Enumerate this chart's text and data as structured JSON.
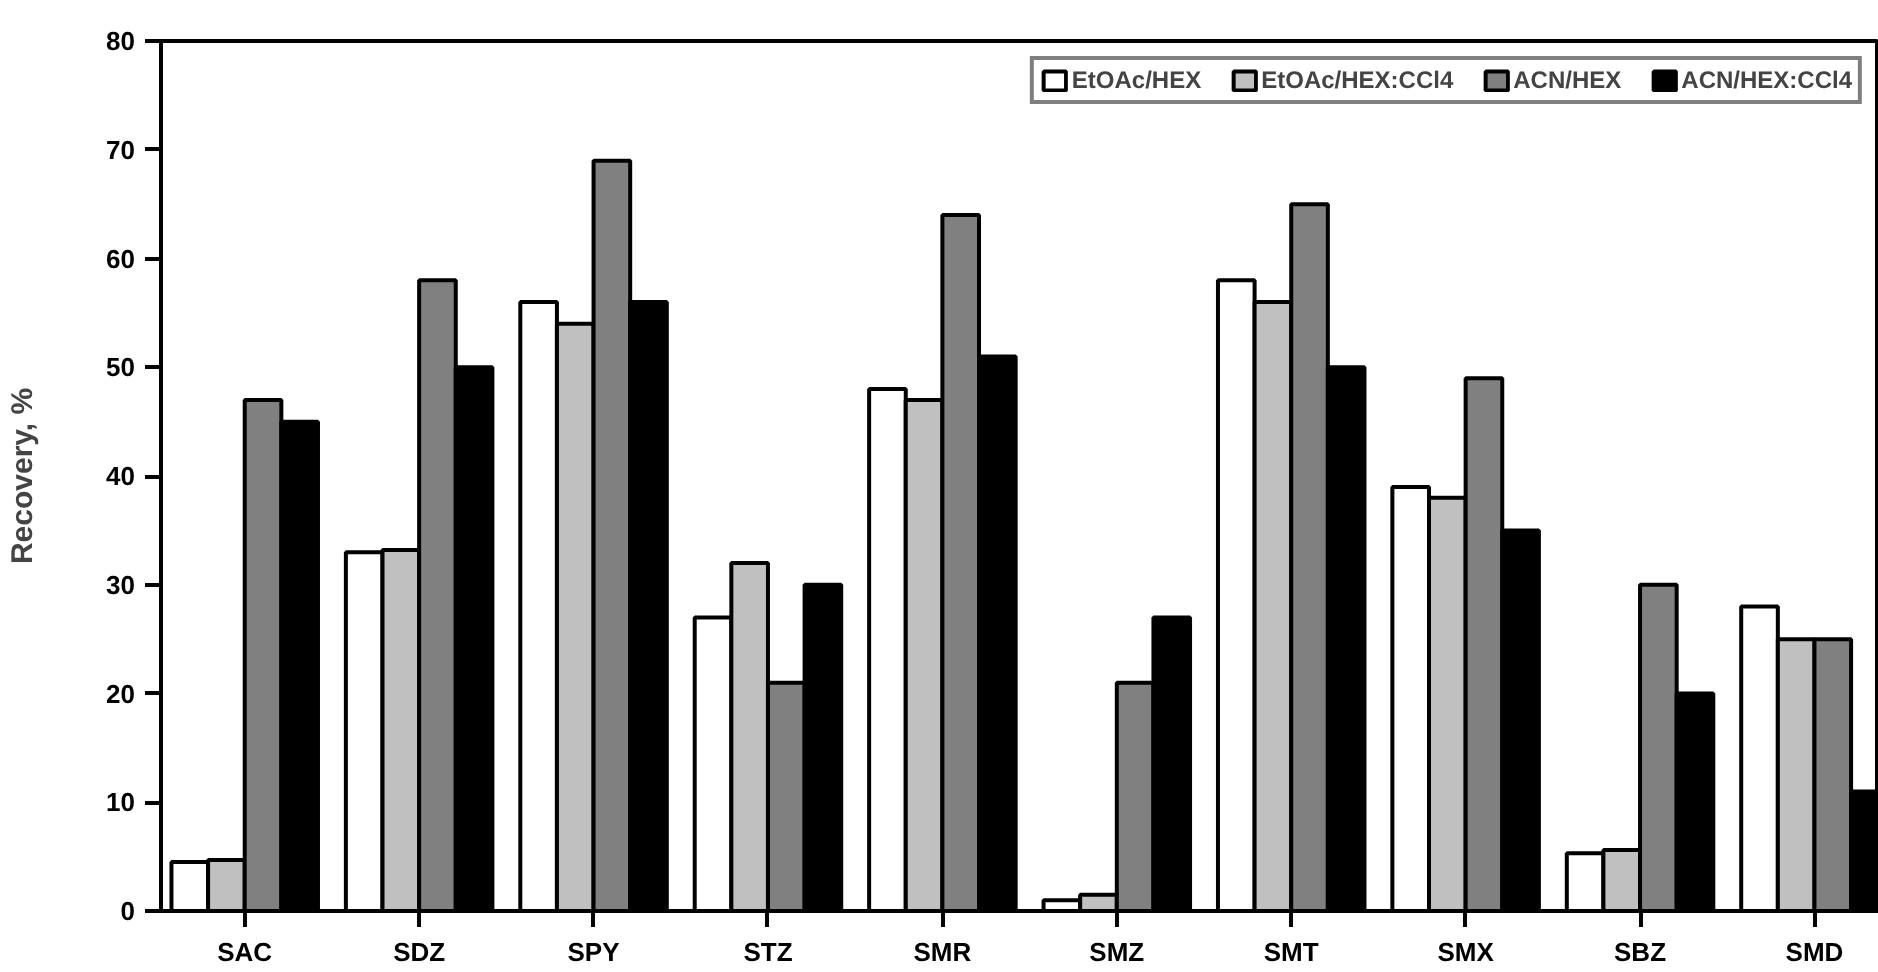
{
  "chart_data": {
    "type": "bar",
    "ylabel": "Recovery, %",
    "categories": [
      "SAC",
      "SDZ",
      "SPY",
      "STZ",
      "SMR",
      "SMZ",
      "SMT",
      "SMX",
      "SBZ",
      "SMD"
    ],
    "series": [
      {
        "name": "EtOAc/HEX",
        "color": "#ffffff",
        "values": [
          4.5,
          33,
          56,
          27,
          48,
          1,
          58,
          39,
          5.3,
          28
        ]
      },
      {
        "name": "EtOAc/HEX:CCl4",
        "color": "#c0c0c0",
        "values": [
          4.7,
          33.2,
          54,
          32,
          47,
          1.5,
          56,
          38,
          5.6,
          25
        ]
      },
      {
        "name": "ACN/HEX",
        "color": "#808080",
        "values": [
          47,
          58,
          69,
          21,
          64,
          21,
          65,
          49,
          30,
          25
        ]
      },
      {
        "name": "ACN/HEX:CCl4",
        "color": "#000000",
        "values": [
          45,
          50,
          56,
          30,
          51,
          27,
          50,
          35,
          20,
          11
        ]
      }
    ],
    "ylim": [
      0,
      80
    ],
    "yticks": [
      0,
      10,
      20,
      30,
      40,
      50,
      60,
      70,
      80
    ],
    "grid": false,
    "legend": "top right"
  }
}
